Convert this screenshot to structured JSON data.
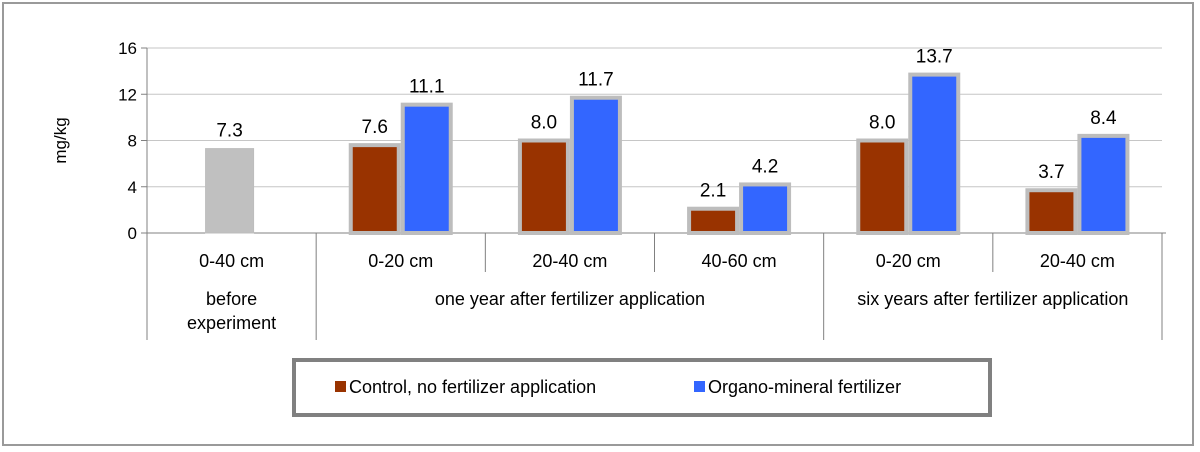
{
  "chart_data": {
    "type": "bar",
    "ylabel": "mg/kg",
    "ylim": [
      0,
      16
    ],
    "yticks": [
      0,
      4,
      8,
      12,
      16
    ],
    "grid": true,
    "legend_position": "bottom",
    "periods": [
      {
        "name": "before experiment",
        "name_lines": [
          "before",
          "experiment"
        ],
        "depths": [
          "0-40 cm"
        ]
      },
      {
        "name": "one year after fertilizer application",
        "name_lines": [
          "one year after fertilizer application"
        ],
        "depths": [
          "0-20 cm",
          "20-40 cm",
          "40-60 cm"
        ]
      },
      {
        "name": "six years after fertilizer application",
        "name_lines": [
          "six years after fertilizer application"
        ],
        "depths": [
          "0-20 cm",
          "20-40 cm"
        ]
      }
    ],
    "baseline": {
      "value": 7.3,
      "label": "7.3",
      "color": "#c0c0c0"
    },
    "series": [
      {
        "name": "Control, no fertilizer application",
        "color": "#993300",
        "values": [
          7.6,
          8.0,
          2.1,
          8.0,
          3.7
        ],
        "labels": [
          "7.6",
          "8.0",
          "2.1",
          "8.0",
          "3.7"
        ]
      },
      {
        "name": "Organo-mineral fertilizer",
        "color": "#3366ff",
        "values": [
          11.1,
          11.7,
          4.2,
          13.7,
          8.4
        ],
        "labels": [
          "11.1",
          "11.7",
          "4.2",
          "13.7",
          "8.4"
        ]
      }
    ]
  }
}
